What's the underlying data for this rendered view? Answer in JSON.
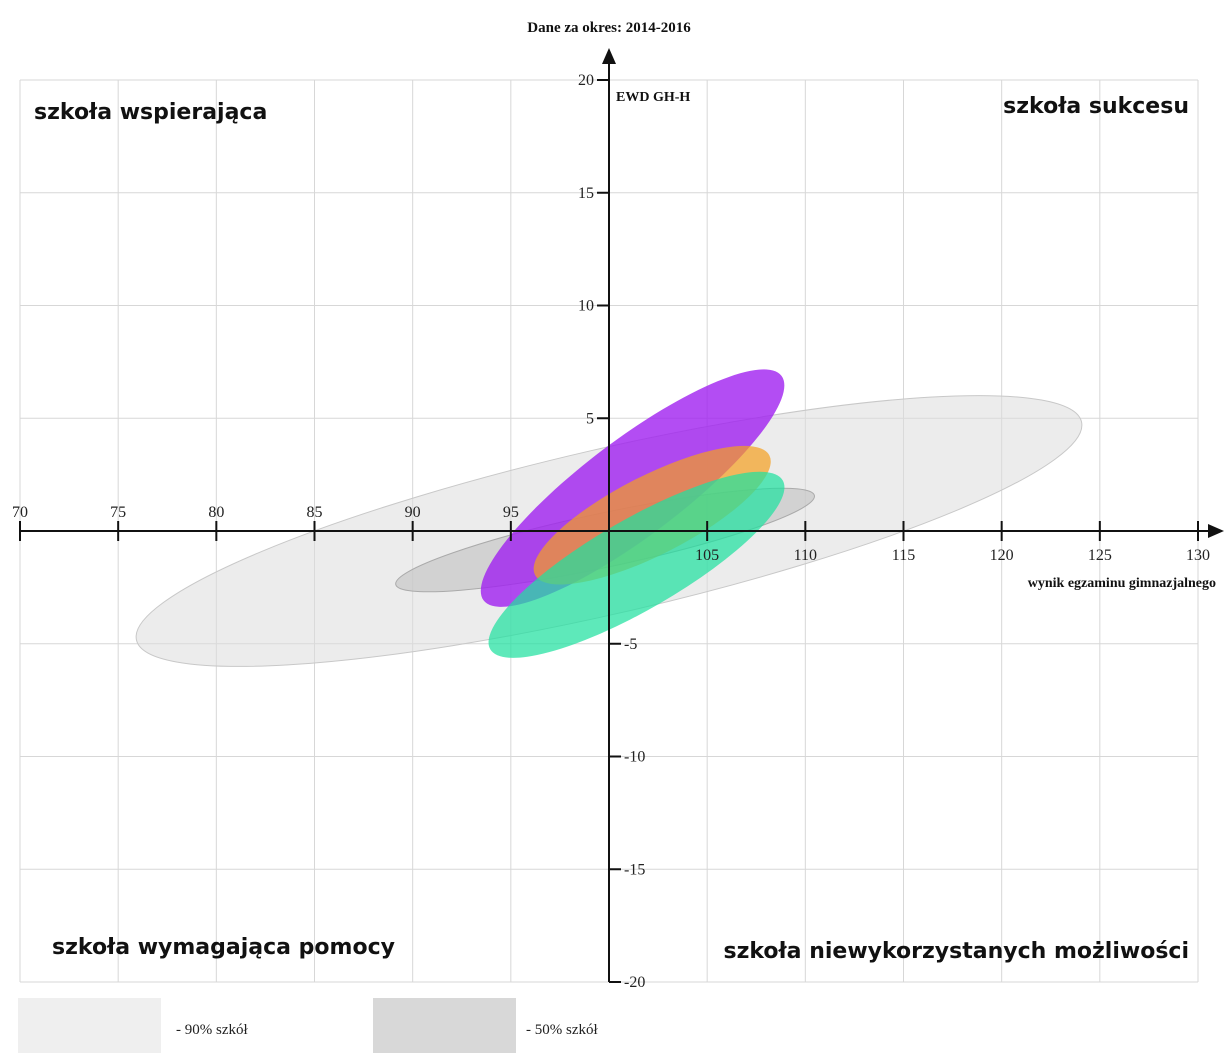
{
  "chart_data": {
    "type": "scatter",
    "title": "Dane za okres: 2014-2016",
    "xlabel": "wynik egzaminu gimnazjalnego",
    "ylabel": "EWD GH-H",
    "xlim": [
      70,
      130
    ],
    "ylim": [
      -20,
      20
    ],
    "x_ticks": [
      70,
      75,
      80,
      85,
      90,
      95,
      100,
      105,
      110,
      115,
      120,
      125,
      130
    ],
    "y_ticks": [
      -20,
      -15,
      -10,
      -5,
      0,
      5,
      10,
      15,
      20
    ],
    "x_tick_labels": [
      "70",
      "75",
      "80",
      "85",
      "90",
      "95",
      "",
      "105",
      "110",
      "115",
      "120",
      "125",
      "130"
    ],
    "y_tick_labels": [
      "-20",
      "-15",
      "-10",
      "-5",
      "",
      "5",
      "10",
      "15",
      "20"
    ],
    "grid": true,
    "quadrants": {
      "top_left": "szkoła wspierająca",
      "top_right": "szkoła sukcesu",
      "bottom_left": "szkoła wymagająca pomocy",
      "bottom_right": "szkoła niewykorzystanych możliwości"
    },
    "ellipses": [
      {
        "cx": 100.0,
        "cy": 0.0,
        "rx": 24.7,
        "ry": 3.65,
        "angle": -13,
        "color": "#dcdcdc",
        "opacity": 0.55,
        "stroke": "#c8c8c8"
      },
      {
        "cx": 99.8,
        "cy": -0.4,
        "rx": 10.9,
        "ry": 1.2,
        "angle": -12,
        "color": "#c4c4c4",
        "opacity": 0.65,
        "stroke": "#aaaaaa"
      },
      {
        "cx": 101.2,
        "cy": 1.9,
        "rx": 9.5,
        "ry": 2.15,
        "angle": -37,
        "color": "#a020f0",
        "opacity": 0.8,
        "stroke": "none"
      },
      {
        "cx": 102.2,
        "cy": 0.7,
        "rx": 6.7,
        "ry": 1.75,
        "angle": -27,
        "color": "#f5a020",
        "opacity": 0.7,
        "stroke": "none"
      },
      {
        "cx": 101.4,
        "cy": -1.5,
        "rx": 8.6,
        "ry": 2.0,
        "angle": -30,
        "color": "#20e0a0",
        "opacity": 0.72,
        "stroke": "none"
      }
    ],
    "legend": [
      {
        "label": "- 90% szkół",
        "color": "#efefef"
      },
      {
        "label": "- 50% szkół",
        "color": "#d8d8d8"
      }
    ]
  }
}
